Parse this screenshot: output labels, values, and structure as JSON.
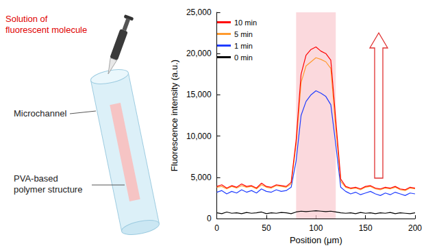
{
  "diagram": {
    "labels": [
      {
        "lines": [
          "Solution of",
          "fluorescent molecule"
        ],
        "color": "#e00000"
      },
      {
        "lines": [
          "Microchannel"
        ],
        "color": "#222222"
      },
      {
        "lines": [
          "PVA-based",
          "polymer structure"
        ],
        "color": "#222222"
      }
    ]
  },
  "chart_data": {
    "type": "line",
    "xlabel": "Position (μm)",
    "ylabel": "Fluorescence intensity (a.u.)",
    "x": [
      0,
      5,
      10,
      15,
      20,
      25,
      30,
      35,
      40,
      45,
      50,
      55,
      60,
      65,
      70,
      75,
      80,
      85,
      90,
      95,
      100,
      105,
      110,
      115,
      120,
      125,
      130,
      135,
      140,
      145,
      150,
      155,
      160,
      165,
      170,
      175,
      180,
      185,
      190,
      195,
      200
    ],
    "series": [
      {
        "name": "10 min",
        "color": "#ff0000",
        "values": [
          3900,
          4100,
          3700,
          4000,
          3800,
          4200,
          3900,
          4000,
          3700,
          4300,
          3900,
          3800,
          4100,
          4000,
          3900,
          4400,
          9500,
          17500,
          19800,
          20500,
          20800,
          20300,
          20000,
          19200,
          12000,
          4800,
          3900,
          3700,
          3800,
          3600,
          3900,
          4000,
          3700,
          3600,
          3800,
          3700,
          3900,
          3600,
          3500,
          3800,
          3700
        ]
      },
      {
        "name": "5 min",
        "color": "#ff9a2e",
        "values": [
          3800,
          3900,
          3600,
          3900,
          3700,
          4000,
          3800,
          3900,
          3600,
          4100,
          3800,
          3700,
          4000,
          3900,
          3800,
          4200,
          9000,
          16500,
          18500,
          19000,
          19500,
          19300,
          19000,
          18200,
          11000,
          4500,
          3800,
          3600,
          3700,
          3500,
          3800,
          3900,
          3600,
          3500,
          3700,
          3600,
          3800,
          3500,
          3400,
          3700,
          3600
        ]
      },
      {
        "name": "1 min",
        "color": "#1f3cff",
        "values": [
          3200,
          3400,
          3000,
          3300,
          3100,
          3500,
          3200,
          3400,
          3100,
          3600,
          3300,
          3200,
          3500,
          3300,
          3400,
          3800,
          7000,
          12500,
          14200,
          15000,
          15500,
          15200,
          14800,
          13800,
          9000,
          3800,
          3300,
          3000,
          3200,
          2900,
          3100,
          3300,
          3000,
          2800,
          3100,
          2900,
          3200,
          3000,
          2800,
          3100,
          3000
        ]
      },
      {
        "name": "0 min",
        "color": "#000000",
        "values": [
          700,
          600,
          800,
          650,
          700,
          600,
          750,
          650,
          700,
          800,
          600,
          700,
          650,
          750,
          700,
          600,
          800,
          900,
          850,
          900,
          950,
          900,
          850,
          900,
          800,
          700,
          650,
          700,
          600,
          750,
          650,
          700,
          600,
          700,
          650,
          750,
          600,
          700,
          650,
          600,
          700
        ]
      }
    ],
    "shaded_range": [
      80,
      120
    ],
    "shaded_color": "#f9c9cf",
    "xlim": [
      0,
      200
    ],
    "xticks": [
      0,
      50,
      100,
      150,
      200
    ],
    "ylim": [
      0,
      25000
    ],
    "yticks": [
      0,
      5000,
      10000,
      15000,
      20000,
      25000
    ],
    "grid": false,
    "legend": "upper left"
  }
}
